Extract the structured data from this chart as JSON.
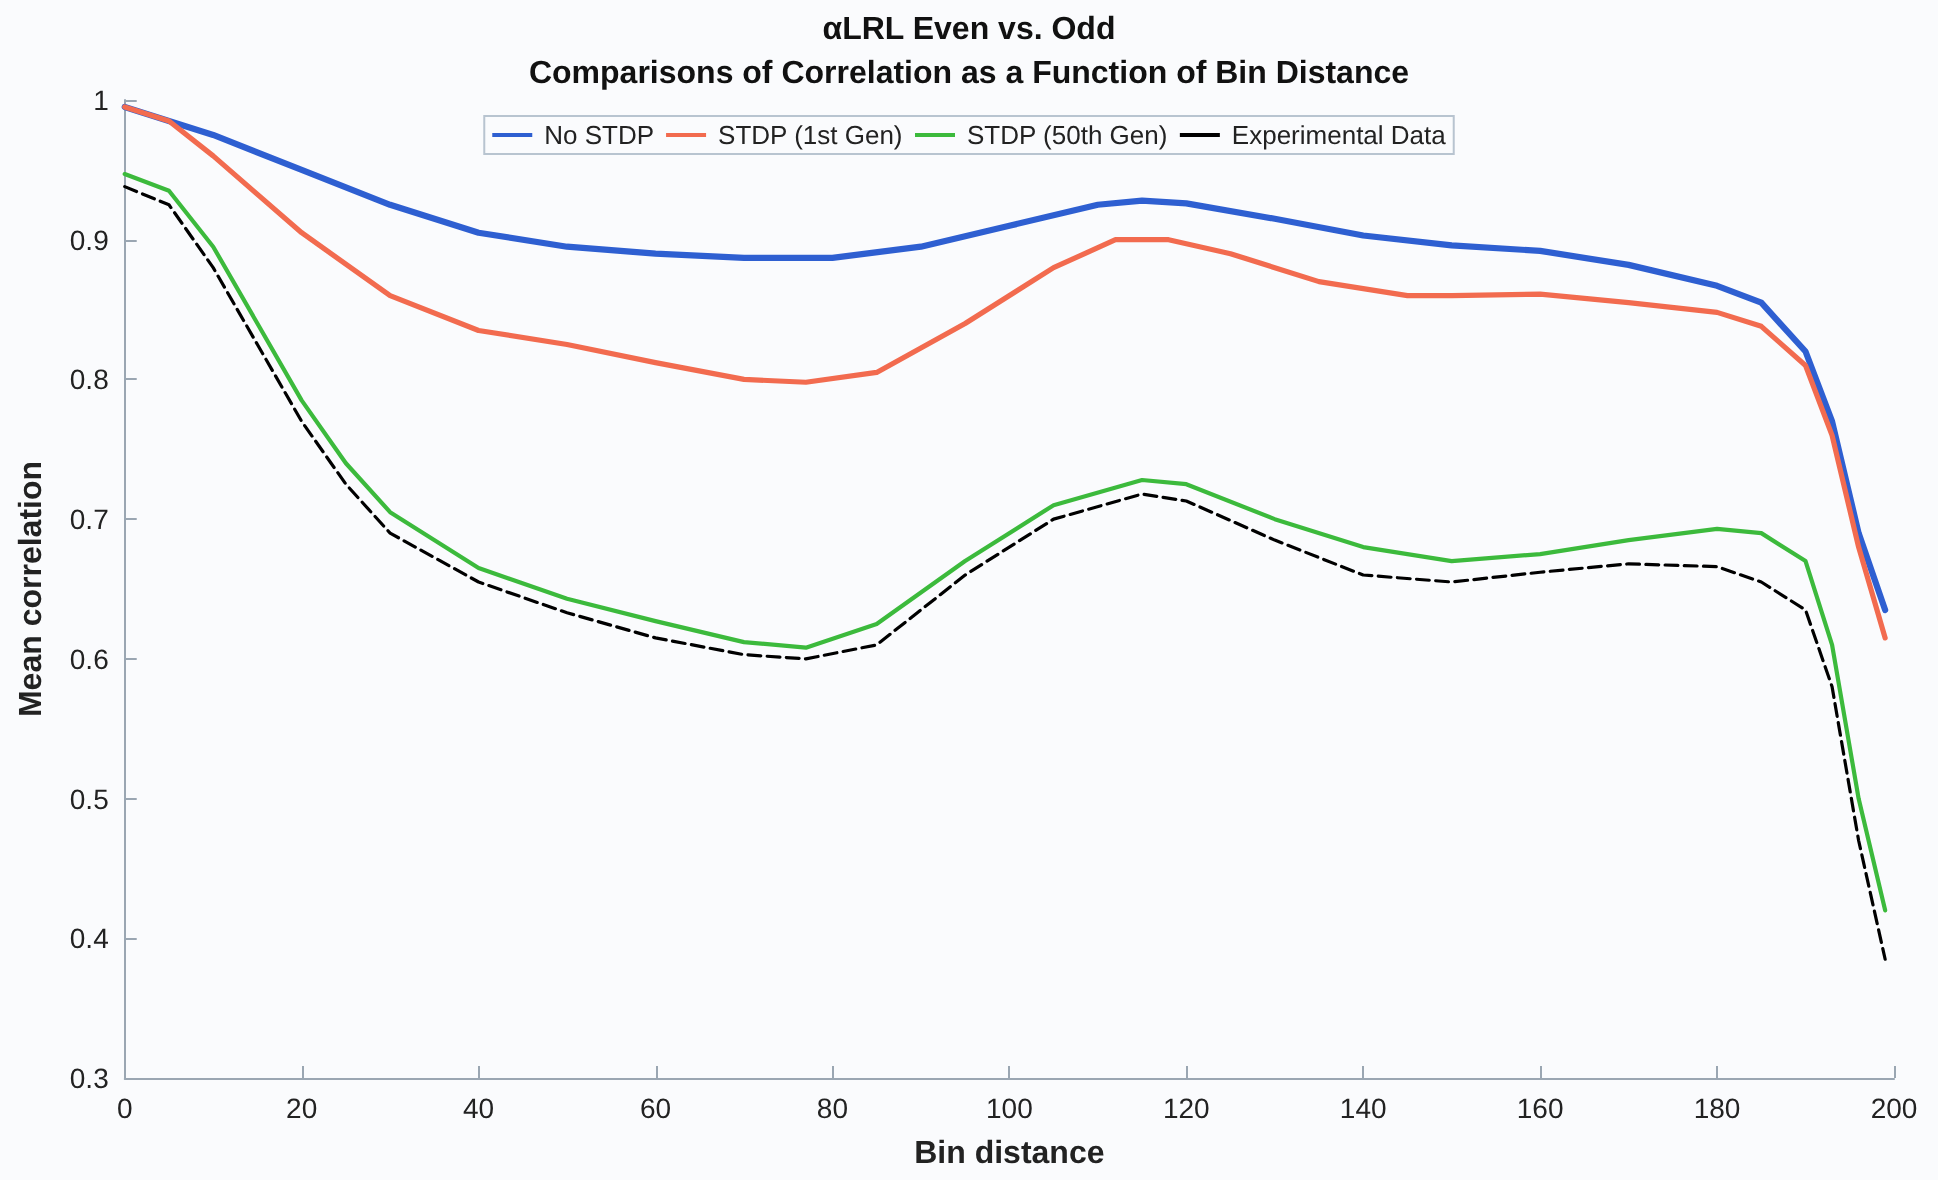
{
  "chart_data": {
    "type": "line",
    "title": "αLRL Even vs. Odd",
    "subtitle": "Comparisons of Correlation as a Function of Bin Distance",
    "xlabel": "Bin distance",
    "ylabel": "Mean correlation",
    "xlim": [
      0,
      200
    ],
    "xticks": [
      0,
      20,
      40,
      60,
      80,
      100,
      120,
      140,
      160,
      180,
      200
    ],
    "ylim": [
      0.3,
      1
    ],
    "yticks": [
      0.3,
      0.4,
      0.5,
      0.6,
      0.7,
      0.8,
      0.9,
      1
    ],
    "grid": false,
    "legend": "top",
    "marker": "none",
    "series": [
      {
        "name": "No STDP",
        "color": "#2e5fd1",
        "line_style": "solid",
        "x": [
          0,
          10,
          20,
          30,
          40,
          50,
          60,
          70,
          80,
          90,
          100,
          110,
          115,
          120,
          130,
          140,
          150,
          160,
          170,
          180,
          185,
          190,
          193,
          196,
          199
        ],
        "values": [
          0.995,
          0.975,
          0.95,
          0.925,
          0.905,
          0.895,
          0.89,
          0.887,
          0.887,
          0.895,
          0.91,
          0.925,
          0.928,
          0.926,
          0.915,
          0.903,
          0.896,
          0.892,
          0.882,
          0.867,
          0.855,
          0.82,
          0.77,
          0.69,
          0.635
        ]
      },
      {
        "name": "STDP (1st Gen)",
        "color": "#f26b4f",
        "line_style": "solid",
        "x": [
          0,
          5,
          10,
          20,
          30,
          40,
          50,
          60,
          70,
          77,
          85,
          95,
          105,
          112,
          118,
          125,
          135,
          145,
          150,
          160,
          170,
          180,
          185,
          190,
          193,
          196,
          199
        ],
        "values": [
          0.995,
          0.985,
          0.96,
          0.905,
          0.86,
          0.835,
          0.825,
          0.812,
          0.8,
          0.798,
          0.805,
          0.84,
          0.88,
          0.9,
          0.9,
          0.89,
          0.87,
          0.86,
          0.86,
          0.861,
          0.855,
          0.848,
          0.838,
          0.81,
          0.76,
          0.68,
          0.615
        ]
      },
      {
        "name": "STDP (50th Gen)",
        "color": "#3cba3c",
        "line_style": "solid",
        "x": [
          0,
          5,
          10,
          15,
          20,
          25,
          30,
          40,
          50,
          60,
          70,
          77,
          85,
          95,
          105,
          115,
          120,
          130,
          140,
          150,
          160,
          170,
          180,
          185,
          190,
          193,
          196,
          199
        ],
        "values": [
          0.947,
          0.935,
          0.895,
          0.84,
          0.785,
          0.74,
          0.705,
          0.665,
          0.643,
          0.627,
          0.612,
          0.608,
          0.625,
          0.67,
          0.71,
          0.728,
          0.725,
          0.7,
          0.68,
          0.67,
          0.675,
          0.685,
          0.693,
          0.69,
          0.67,
          0.61,
          0.5,
          0.42
        ]
      },
      {
        "name": "Experimental Data",
        "color": "#000000",
        "line_style": "dashed",
        "x": [
          0,
          5,
          10,
          15,
          20,
          25,
          30,
          40,
          50,
          60,
          70,
          77,
          85,
          95,
          105,
          115,
          120,
          130,
          140,
          150,
          160,
          170,
          180,
          185,
          190,
          193,
          196,
          199
        ],
        "values": [
          0.938,
          0.925,
          0.88,
          0.825,
          0.77,
          0.725,
          0.69,
          0.655,
          0.633,
          0.615,
          0.603,
          0.6,
          0.61,
          0.66,
          0.7,
          0.718,
          0.713,
          0.685,
          0.66,
          0.655,
          0.662,
          0.668,
          0.666,
          0.655,
          0.635,
          0.58,
          0.47,
          0.385
        ]
      }
    ]
  }
}
